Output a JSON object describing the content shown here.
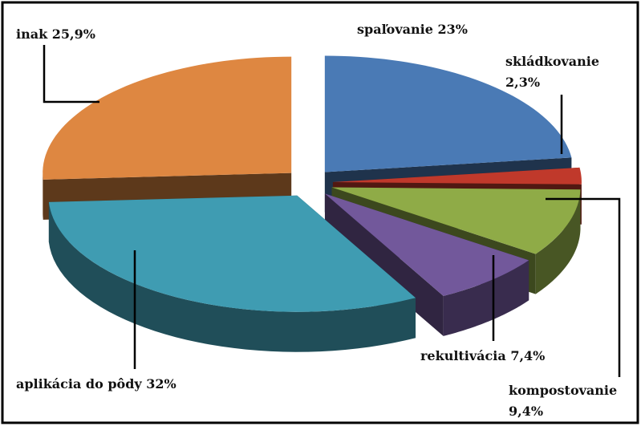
{
  "chart_data": {
    "type": "pie",
    "categories": [
      "spaľovanie",
      "skládkovanie",
      "kompostovanie",
      "rekultivácia",
      "aplikácia do pôdy",
      "inak"
    ],
    "values": [
      23,
      2.3,
      9.4,
      7.4,
      32,
      25.9
    ],
    "value_labels": [
      "23%",
      "2,3%",
      "9,4%",
      "7,4%",
      "32%",
      "25,9%"
    ],
    "colors": [
      "#4a7ab5",
      "#c0392b",
      "#8fab47",
      "#72589b",
      "#3f9cb2",
      "#de8741"
    ]
  }
}
